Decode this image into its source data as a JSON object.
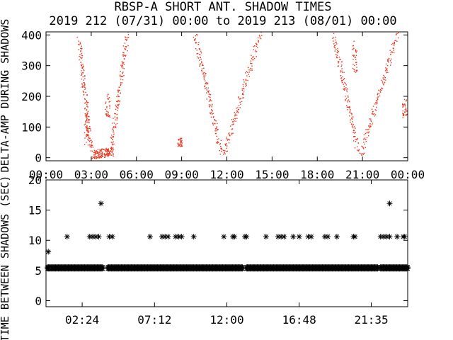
{
  "title": "RBSP-A SHORT ANT. SHADOW TIMES",
  "subtitle": "2019 212 (07/31) 00:00 to 2019 213 (08/01) 00:00",
  "colors": {
    "top_points": "#e8341c",
    "bottom_points": "#000000",
    "axes": "#000000"
  },
  "chart_data": [
    {
      "type": "scatter",
      "ylabel": "DELTA-AMP DURING SHADOWS",
      "xlabel": "",
      "x_ticks": [
        "00:00",
        "03:00",
        "06:00",
        "09:00",
        "12:00",
        "15:00",
        "18:00",
        "21:00",
        "00:00"
      ],
      "x_tick_hours": [
        0,
        3,
        6,
        9,
        12,
        15,
        18,
        21,
        24
      ],
      "xlim_hours": [
        0,
        24
      ],
      "y_ticks": [
        "0",
        "100",
        "200",
        "300",
        "400"
      ],
      "y_tick_values": [
        0,
        100,
        200,
        300,
        400
      ],
      "ylim": [
        -10,
        410
      ],
      "point_shape": "dot",
      "series_ranges": [
        {
          "x_start": 2.2,
          "x_end": 3.0,
          "y_start": 380,
          "y_end": 20
        },
        {
          "x_start": 3.1,
          "x_end": 4.4,
          "y_start": 10,
          "y_end": 20
        },
        {
          "x_start": 4.3,
          "x_end": 5.4,
          "y_start": 20,
          "y_end": 400
        },
        {
          "x_start": 9.9,
          "x_end": 11.6,
          "y_start": 400,
          "y_end": 20
        },
        {
          "x_start": 11.8,
          "x_end": 14.2,
          "y_start": 10,
          "y_end": 400
        },
        {
          "x_start": 19.1,
          "x_end": 20.7,
          "y_start": 400,
          "y_end": 20
        },
        {
          "x_start": 20.9,
          "x_end": 23.3,
          "y_start": 10,
          "y_end": 400
        }
      ],
      "clusters": [
        {
          "x": 4.1,
          "y": 170,
          "spread_y": 40
        },
        {
          "x": 8.9,
          "y": 50,
          "spread_y": 15
        },
        {
          "x": 23.8,
          "y": 160,
          "spread_y": 30
        },
        {
          "x": 2.7,
          "y": 100,
          "spread_y": 60
        },
        {
          "x": 20.5,
          "y": 320,
          "spread_y": 60
        }
      ]
    },
    {
      "type": "scatter",
      "ylabel": "TIME BETWEEN SHADOWS (SEC)",
      "xlabel": "",
      "x_ticks": [
        "02:24",
        "07:12",
        "12:00",
        "16:48",
        "21:35"
      ],
      "x_tick_hours": [
        2.4,
        7.2,
        12.0,
        16.8,
        21.583
      ],
      "xlim_hours": [
        0,
        24
      ],
      "y_ticks": [
        "0",
        "5",
        "10",
        "15",
        "20"
      ],
      "y_tick_values": [
        0,
        5,
        10,
        15,
        20
      ],
      "ylim": [
        -1,
        20
      ],
      "point_shape": "asterisk",
      "baseline": {
        "y": 5.3,
        "segments": [
          [
            0.1,
            3.8
          ],
          [
            4.1,
            13.1
          ],
          [
            13.3,
            22.0
          ],
          [
            22.2,
            24.0
          ]
        ]
      },
      "points": [
        {
          "x": 0.15,
          "y": 8.1
        },
        {
          "x": 1.4,
          "y": 10.6
        },
        {
          "x": 2.9,
          "y": 10.6
        },
        {
          "x": 3.1,
          "y": 10.6
        },
        {
          "x": 3.3,
          "y": 10.6
        },
        {
          "x": 3.5,
          "y": 10.6
        },
        {
          "x": 3.65,
          "y": 16.1
        },
        {
          "x": 4.2,
          "y": 10.6
        },
        {
          "x": 4.4,
          "y": 10.6
        },
        {
          "x": 6.9,
          "y": 10.6
        },
        {
          "x": 7.7,
          "y": 10.6
        },
        {
          "x": 7.9,
          "y": 10.6
        },
        {
          "x": 8.1,
          "y": 10.6
        },
        {
          "x": 8.6,
          "y": 10.6
        },
        {
          "x": 8.8,
          "y": 10.6
        },
        {
          "x": 9.0,
          "y": 10.6
        },
        {
          "x": 9.8,
          "y": 10.6
        },
        {
          "x": 11.8,
          "y": 10.6
        },
        {
          "x": 12.4,
          "y": 10.6
        },
        {
          "x": 12.5,
          "y": 10.6
        },
        {
          "x": 13.2,
          "y": 10.6
        },
        {
          "x": 13.3,
          "y": 10.6
        },
        {
          "x": 14.6,
          "y": 10.6
        },
        {
          "x": 15.4,
          "y": 10.6
        },
        {
          "x": 15.6,
          "y": 10.6
        },
        {
          "x": 15.8,
          "y": 10.6
        },
        {
          "x": 16.4,
          "y": 10.6
        },
        {
          "x": 16.8,
          "y": 10.6
        },
        {
          "x": 17.4,
          "y": 10.6
        },
        {
          "x": 17.6,
          "y": 10.6
        },
        {
          "x": 18.5,
          "y": 10.6
        },
        {
          "x": 18.7,
          "y": 10.6
        },
        {
          "x": 19.3,
          "y": 10.6
        },
        {
          "x": 20.4,
          "y": 10.6
        },
        {
          "x": 20.5,
          "y": 10.6
        },
        {
          "x": 22.2,
          "y": 10.6
        },
        {
          "x": 22.4,
          "y": 10.6
        },
        {
          "x": 22.6,
          "y": 10.6
        },
        {
          "x": 22.8,
          "y": 10.6
        },
        {
          "x": 22.8,
          "y": 16.1
        },
        {
          "x": 23.3,
          "y": 10.6
        },
        {
          "x": 23.7,
          "y": 10.6
        },
        {
          "x": 23.8,
          "y": 10.6
        }
      ]
    }
  ]
}
